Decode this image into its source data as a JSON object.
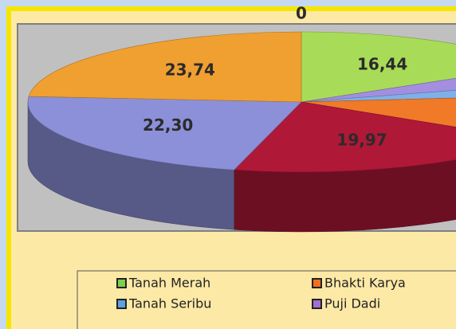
{
  "chart_data": {
    "type": "pie3d",
    "values": [
      0,
      16.44,
      4,
      3,
      10.55,
      19.97,
      22.3,
      23.74
    ],
    "value_labels": [
      "0",
      "16,44",
      null,
      null,
      null,
      "19,97",
      "22,30",
      "23,74"
    ],
    "colors": [
      "#d4ec80",
      "#a8dc58",
      "#a48ee0",
      "#7fb0e8",
      "#f07a28",
      "#b01838",
      "#8c90d8",
      "#f0a030"
    ],
    "legend": [
      {
        "name": "Tanah Merah",
        "color": "#7ed04a"
      },
      {
        "name": "Bhakti Karya",
        "color": "#f07020"
      },
      {
        "name": "Tanah Seribu",
        "color": "#5fa0e0"
      },
      {
        "name": "Puji Dadi",
        "color": "#a070d0"
      }
    ]
  }
}
